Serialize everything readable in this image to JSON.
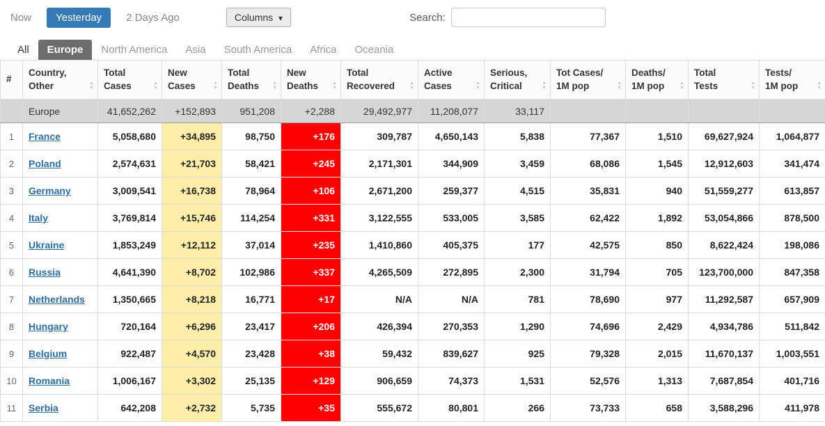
{
  "toolbar": {
    "now_label": "Now",
    "yesterday_label": "Yesterday",
    "two_days_ago_label": "2 Days Ago",
    "columns_label": "Columns",
    "search_label": "Search:",
    "search_value": ""
  },
  "icons": {
    "caret_down": "▾",
    "sort_asc": "▲",
    "sort_desc": "▼"
  },
  "colors": {
    "accent_blue": "#337ab7",
    "active_tab_bg": "#6d6d6d",
    "new_cases_bg": "#FFEEAA",
    "new_deaths_bg": "#FF0000",
    "totals_row_bg": "#d6d6d6",
    "link_blue": "#2e6da4"
  },
  "tabs": [
    {
      "label": "All",
      "active": false
    },
    {
      "label": "Europe",
      "active": true
    },
    {
      "label": "North America",
      "active": false
    },
    {
      "label": "Asia",
      "active": false
    },
    {
      "label": "South America",
      "active": false
    },
    {
      "label": "Africa",
      "active": false
    },
    {
      "label": "Oceania",
      "active": false
    }
  ],
  "table": {
    "headers": [
      {
        "lines": [
          "#"
        ],
        "sortable": false
      },
      {
        "lines": [
          "Country,",
          "Other"
        ],
        "sortable": true
      },
      {
        "lines": [
          "Total",
          "Cases"
        ],
        "sortable": true
      },
      {
        "lines": [
          "New",
          "Cases"
        ],
        "sortable": true
      },
      {
        "lines": [
          "Total",
          "Deaths"
        ],
        "sortable": true
      },
      {
        "lines": [
          "New",
          "Deaths"
        ],
        "sortable": true
      },
      {
        "lines": [
          "Total",
          "Recovered"
        ],
        "sortable": true
      },
      {
        "lines": [
          "Active",
          "Cases"
        ],
        "sortable": true
      },
      {
        "lines": [
          "Serious,",
          "Critical"
        ],
        "sortable": true
      },
      {
        "lines": [
          "Tot Cases/",
          "1M pop"
        ],
        "sortable": true
      },
      {
        "lines": [
          "Deaths/",
          "1M pop"
        ],
        "sortable": true
      },
      {
        "lines": [
          "Total",
          "Tests"
        ],
        "sortable": true
      },
      {
        "lines": [
          "Tests/",
          "1M pop"
        ],
        "sortable": true
      }
    ],
    "totals_row": {
      "name": "Europe",
      "total_cases": "41,652,262",
      "new_cases": "+152,893",
      "total_deaths": "951,208",
      "new_deaths": "+2,288",
      "total_recovered": "29,492,977",
      "active_cases": "11,208,077",
      "serious_critical": "33,117",
      "tot_cases_1m": "",
      "deaths_1m": "",
      "total_tests": "",
      "tests_1m": ""
    },
    "rows": [
      {
        "rank": "1",
        "country": "France",
        "total_cases": "5,058,680",
        "new_cases": "+34,895",
        "total_deaths": "98,750",
        "new_deaths": "+176",
        "total_recovered": "309,787",
        "active_cases": "4,650,143",
        "serious_critical": "5,838",
        "tot_cases_1m": "77,367",
        "deaths_1m": "1,510",
        "total_tests": "69,627,924",
        "tests_1m": "1,064,877"
      },
      {
        "rank": "2",
        "country": "Poland",
        "total_cases": "2,574,631",
        "new_cases": "+21,703",
        "total_deaths": "58,421",
        "new_deaths": "+245",
        "total_recovered": "2,171,301",
        "active_cases": "344,909",
        "serious_critical": "3,459",
        "tot_cases_1m": "68,086",
        "deaths_1m": "1,545",
        "total_tests": "12,912,603",
        "tests_1m": "341,474"
      },
      {
        "rank": "3",
        "country": "Germany",
        "total_cases": "3,009,541",
        "new_cases": "+16,738",
        "total_deaths": "78,964",
        "new_deaths": "+106",
        "total_recovered": "2,671,200",
        "active_cases": "259,377",
        "serious_critical": "4,515",
        "tot_cases_1m": "35,831",
        "deaths_1m": "940",
        "total_tests": "51,559,277",
        "tests_1m": "613,857"
      },
      {
        "rank": "4",
        "country": "Italy",
        "total_cases": "3,769,814",
        "new_cases": "+15,746",
        "total_deaths": "114,254",
        "new_deaths": "+331",
        "total_recovered": "3,122,555",
        "active_cases": "533,005",
        "serious_critical": "3,585",
        "tot_cases_1m": "62,422",
        "deaths_1m": "1,892",
        "total_tests": "53,054,866",
        "tests_1m": "878,500"
      },
      {
        "rank": "5",
        "country": "Ukraine",
        "total_cases": "1,853,249",
        "new_cases": "+12,112",
        "total_deaths": "37,014",
        "new_deaths": "+235",
        "total_recovered": "1,410,860",
        "active_cases": "405,375",
        "serious_critical": "177",
        "tot_cases_1m": "42,575",
        "deaths_1m": "850",
        "total_tests": "8,622,424",
        "tests_1m": "198,086"
      },
      {
        "rank": "6",
        "country": "Russia",
        "total_cases": "4,641,390",
        "new_cases": "+8,702",
        "total_deaths": "102,986",
        "new_deaths": "+337",
        "total_recovered": "4,265,509",
        "active_cases": "272,895",
        "serious_critical": "2,300",
        "tot_cases_1m": "31,794",
        "deaths_1m": "705",
        "total_tests": "123,700,000",
        "tests_1m": "847,358"
      },
      {
        "rank": "7",
        "country": "Netherlands",
        "total_cases": "1,350,665",
        "new_cases": "+8,218",
        "total_deaths": "16,771",
        "new_deaths": "+17",
        "total_recovered": "N/A",
        "active_cases": "N/A",
        "serious_critical": "781",
        "tot_cases_1m": "78,690",
        "deaths_1m": "977",
        "total_tests": "11,292,587",
        "tests_1m": "657,909"
      },
      {
        "rank": "8",
        "country": "Hungary",
        "total_cases": "720,164",
        "new_cases": "+6,296",
        "total_deaths": "23,417",
        "new_deaths": "+206",
        "total_recovered": "426,394",
        "active_cases": "270,353",
        "serious_critical": "1,290",
        "tot_cases_1m": "74,696",
        "deaths_1m": "2,429",
        "total_tests": "4,934,786",
        "tests_1m": "511,842"
      },
      {
        "rank": "9",
        "country": "Belgium",
        "total_cases": "922,487",
        "new_cases": "+4,570",
        "total_deaths": "23,428",
        "new_deaths": "+38",
        "total_recovered": "59,432",
        "active_cases": "839,627",
        "serious_critical": "925",
        "tot_cases_1m": "79,328",
        "deaths_1m": "2,015",
        "total_tests": "11,670,137",
        "tests_1m": "1,003,551"
      },
      {
        "rank": "10",
        "country": "Romania",
        "total_cases": "1,006,167",
        "new_cases": "+3,302",
        "total_deaths": "25,135",
        "new_deaths": "+129",
        "total_recovered": "906,659",
        "active_cases": "74,373",
        "serious_critical": "1,531",
        "tot_cases_1m": "52,576",
        "deaths_1m": "1,313",
        "total_tests": "7,687,854",
        "tests_1m": "401,716"
      },
      {
        "rank": "11",
        "country": "Serbia",
        "total_cases": "642,208",
        "new_cases": "+2,732",
        "total_deaths": "5,735",
        "new_deaths": "+35",
        "total_recovered": "555,672",
        "active_cases": "80,801",
        "serious_critical": "266",
        "tot_cases_1m": "73,733",
        "deaths_1m": "658",
        "total_tests": "3,588,296",
        "tests_1m": "411,978"
      }
    ]
  }
}
